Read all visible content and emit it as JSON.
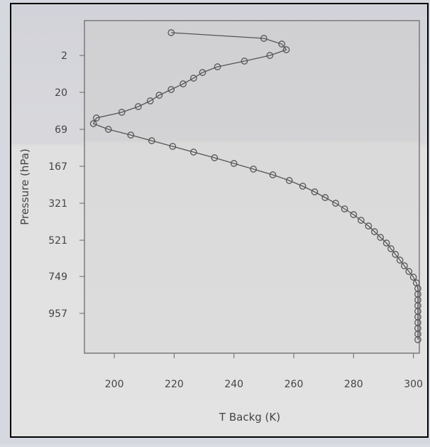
{
  "chart_data": {
    "type": "line",
    "title": "",
    "xlabel": "T Backg (K)",
    "ylabel": "Pressure (hPa)",
    "xlim": [
      190,
      302
    ],
    "x_ticks": [
      200,
      220,
      240,
      260,
      280,
      300
    ],
    "y_tick_labels": [
      "2",
      "20",
      "69",
      "167",
      "321",
      "521",
      "749",
      "957"
    ],
    "y_axis": "pressure level index (surface at bottom)",
    "grid": false,
    "legend": "none",
    "colors": {
      "line": "#555555",
      "marker": "#555555",
      "plot_bg": "#d6d6d6"
    },
    "series": [
      {
        "level_labels": [
          "2",
          "20",
          "69",
          "167",
          "321",
          "521",
          "749",
          "957"
        ],
        "level_index": [
          0,
          1,
          2,
          3,
          4,
          5,
          6,
          7,
          8,
          9,
          10,
          11,
          12,
          13,
          14,
          15,
          16,
          17,
          18,
          19,
          20,
          21,
          22,
          23,
          24,
          25,
          26,
          27,
          28,
          29,
          30,
          31,
          32,
          33,
          34,
          35,
          36,
          37,
          38,
          39,
          40,
          41,
          42,
          43,
          44,
          45,
          46,
          47,
          48,
          49,
          50,
          51,
          52,
          53,
          54
        ],
        "x": [
          219,
          250,
          256,
          257.5,
          252,
          243.5,
          234.5,
          229.5,
          226.5,
          223,
          219,
          215,
          212,
          208,
          202.5,
          194,
          193,
          198,
          205.5,
          212.5,
          219.5,
          226.5,
          233.5,
          240,
          246.5,
          253,
          258.5,
          263,
          267,
          270.5,
          274,
          277,
          280,
          282.5,
          285,
          287,
          289,
          291,
          292.5,
          294,
          295.5,
          297,
          298.5,
          300,
          301,
          301.5,
          301.5,
          301.5,
          301.5,
          301.5,
          301.5,
          301.5,
          301.5,
          301.5,
          301.5
        ]
      }
    ]
  }
}
